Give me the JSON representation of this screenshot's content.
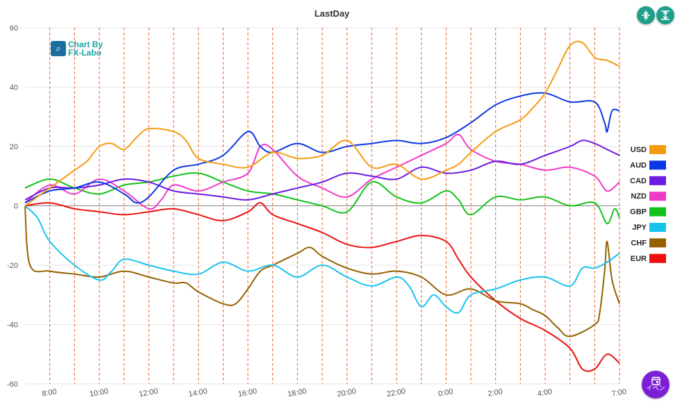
{
  "header": {
    "title": "LastDay"
  },
  "buttons": {
    "collapse_icon": "compress-vertical-icon",
    "expand_icon": "expand-vertical-icon",
    "event_label": "イベン",
    "event_icon": "calendar-icon"
  },
  "logo": {
    "line1": "Chart By",
    "line2": "FX-Labo",
    "icon": "magnifier-chart-icon"
  },
  "chart_data": {
    "type": "line",
    "title": "LastDay",
    "ylim": [
      -60,
      60
    ],
    "yticks": [
      60,
      40,
      20,
      0,
      -20,
      -40,
      -60
    ],
    "x_range_hours": [
      7.0,
      31.0
    ],
    "xticks": [
      "8:00",
      "10:00",
      "12:00",
      "14:00",
      "16:00",
      "18:00",
      "20:00",
      "22:00",
      "0:00",
      "2:00",
      "4:00",
      "7:00"
    ],
    "legend_position": "right",
    "grid": "horizontal",
    "zero_line": true,
    "session_markers": "vertical dashed lines every hour (orange-red)",
    "series": [
      {
        "name": "USD",
        "color": "#f59b10",
        "points": [
          [
            7,
            0
          ],
          [
            8,
            6
          ],
          [
            9,
            12
          ],
          [
            9.5,
            15
          ],
          [
            10,
            20
          ],
          [
            10.5,
            21
          ],
          [
            11,
            19
          ],
          [
            11.5,
            23
          ],
          [
            12,
            26
          ],
          [
            13,
            25
          ],
          [
            13.5,
            22
          ],
          [
            14,
            16
          ],
          [
            15,
            14
          ],
          [
            16,
            13
          ],
          [
            17,
            18
          ],
          [
            18,
            16
          ],
          [
            19,
            17
          ],
          [
            20,
            22
          ],
          [
            21,
            13
          ],
          [
            22,
            14
          ],
          [
            23,
            9
          ],
          [
            24,
            12
          ],
          [
            24.5,
            14
          ],
          [
            25,
            18
          ],
          [
            26,
            25
          ],
          [
            27,
            29
          ],
          [
            27.5,
            33
          ],
          [
            28,
            38
          ],
          [
            28.5,
            46
          ],
          [
            29,
            54
          ],
          [
            29.5,
            55
          ],
          [
            30,
            50
          ],
          [
            30.5,
            49
          ],
          [
            31,
            47
          ]
        ]
      },
      {
        "name": "AUD",
        "color": "#0a37e6",
        "points": [
          [
            7,
            1
          ],
          [
            8,
            5
          ],
          [
            9,
            6
          ],
          [
            10,
            8
          ],
          [
            11,
            4
          ],
          [
            11.5,
            1
          ],
          [
            12,
            3
          ],
          [
            13,
            12
          ],
          [
            14,
            14
          ],
          [
            15,
            17
          ],
          [
            16,
            25
          ],
          [
            16.5,
            20
          ],
          [
            17,
            18
          ],
          [
            18,
            21
          ],
          [
            19,
            18
          ],
          [
            20,
            20
          ],
          [
            21,
            21
          ],
          [
            22,
            22
          ],
          [
            23,
            21
          ],
          [
            24,
            23
          ],
          [
            25,
            28
          ],
          [
            26,
            34
          ],
          [
            27,
            37
          ],
          [
            28,
            38
          ],
          [
            29,
            35
          ],
          [
            30,
            35
          ],
          [
            30.4,
            28
          ],
          [
            30.5,
            25
          ],
          [
            30.7,
            32
          ],
          [
            31,
            32
          ]
        ]
      },
      {
        "name": "CAD",
        "color": "#6a1ce3",
        "points": [
          [
            7,
            2
          ],
          [
            8,
            6
          ],
          [
            9,
            6
          ],
          [
            10,
            7
          ],
          [
            11,
            9
          ],
          [
            12,
            8
          ],
          [
            13,
            5
          ],
          [
            14,
            4
          ],
          [
            15,
            3
          ],
          [
            16,
            2
          ],
          [
            17,
            4
          ],
          [
            18,
            6
          ],
          [
            19,
            8
          ],
          [
            20,
            11
          ],
          [
            21,
            10
          ],
          [
            22,
            9
          ],
          [
            23,
            13
          ],
          [
            24,
            11
          ],
          [
            25,
            12
          ],
          [
            26,
            15
          ],
          [
            27,
            14
          ],
          [
            28,
            17
          ],
          [
            29,
            20
          ],
          [
            29.5,
            22
          ],
          [
            30,
            21
          ],
          [
            30.5,
            19
          ],
          [
            31,
            17
          ]
        ]
      },
      {
        "name": "NZD",
        "color": "#ef3ac8",
        "points": [
          [
            7,
            1
          ],
          [
            8,
            7
          ],
          [
            9,
            4
          ],
          [
            10,
            9
          ],
          [
            11,
            5
          ],
          [
            12,
            -1
          ],
          [
            12.5,
            2
          ],
          [
            13,
            7
          ],
          [
            14,
            5
          ],
          [
            15,
            8
          ],
          [
            16,
            11
          ],
          [
            16.5,
            20
          ],
          [
            17,
            19
          ],
          [
            18,
            10
          ],
          [
            19,
            6
          ],
          [
            20,
            3
          ],
          [
            21,
            9
          ],
          [
            22,
            13
          ],
          [
            23,
            17
          ],
          [
            24,
            21
          ],
          [
            24.5,
            24
          ],
          [
            25,
            19
          ],
          [
            26,
            15
          ],
          [
            27,
            14
          ],
          [
            28,
            12
          ],
          [
            29,
            13
          ],
          [
            30,
            10
          ],
          [
            30.5,
            5
          ],
          [
            31,
            8
          ]
        ]
      },
      {
        "name": "GBP",
        "color": "#12c21a",
        "points": [
          [
            7,
            6
          ],
          [
            8,
            9
          ],
          [
            9,
            6
          ],
          [
            10,
            4
          ],
          [
            11,
            7
          ],
          [
            12,
            8
          ],
          [
            13,
            10
          ],
          [
            14,
            11
          ],
          [
            15,
            8
          ],
          [
            16,
            5
          ],
          [
            17,
            4
          ],
          [
            18,
            2
          ],
          [
            19,
            0
          ],
          [
            20,
            -2
          ],
          [
            21,
            8
          ],
          [
            22,
            3
          ],
          [
            23,
            1
          ],
          [
            24,
            5
          ],
          [
            24.5,
            2
          ],
          [
            25,
            -3
          ],
          [
            26,
            3
          ],
          [
            27,
            2
          ],
          [
            28,
            3
          ],
          [
            29,
            0
          ],
          [
            30,
            1
          ],
          [
            30.5,
            -6
          ],
          [
            30.8,
            -1
          ],
          [
            31,
            -4
          ]
        ]
      },
      {
        "name": "JPY",
        "color": "#17c4ee",
        "points": [
          [
            7,
            0
          ],
          [
            7.5,
            -4
          ],
          [
            8,
            -12
          ],
          [
            9,
            -20
          ],
          [
            10,
            -25
          ],
          [
            10.5,
            -22
          ],
          [
            11,
            -18
          ],
          [
            12,
            -20
          ],
          [
            13,
            -22
          ],
          [
            14,
            -23
          ],
          [
            15,
            -19
          ],
          [
            16,
            -22
          ],
          [
            17,
            -20
          ],
          [
            18,
            -24
          ],
          [
            19,
            -20
          ],
          [
            20,
            -24
          ],
          [
            21,
            -27
          ],
          [
            22,
            -24
          ],
          [
            22.5,
            -27
          ],
          [
            23,
            -34
          ],
          [
            23.5,
            -30
          ],
          [
            24,
            -34
          ],
          [
            24.5,
            -36
          ],
          [
            25,
            -30
          ],
          [
            26,
            -28
          ],
          [
            27,
            -25
          ],
          [
            28,
            -24
          ],
          [
            29,
            -27
          ],
          [
            29.5,
            -21
          ],
          [
            30,
            -21
          ],
          [
            30.5,
            -19
          ],
          [
            31,
            -16
          ]
        ]
      },
      {
        "name": "CHF",
        "color": "#946000",
        "points": [
          [
            7,
            0
          ],
          [
            7.2,
            -20
          ],
          [
            8,
            -22
          ],
          [
            9,
            -23
          ],
          [
            10,
            -24
          ],
          [
            11,
            -22
          ],
          [
            12,
            -24
          ],
          [
            13,
            -26
          ],
          [
            13.5,
            -26
          ],
          [
            14,
            -29
          ],
          [
            15,
            -33
          ],
          [
            15.5,
            -33
          ],
          [
            16,
            -28
          ],
          [
            16.5,
            -22
          ],
          [
            17,
            -20
          ],
          [
            18,
            -16
          ],
          [
            18.5,
            -14
          ],
          [
            19,
            -17
          ],
          [
            20,
            -21
          ],
          [
            21,
            -23
          ],
          [
            22,
            -22
          ],
          [
            23,
            -24
          ],
          [
            24,
            -30
          ],
          [
            25,
            -28
          ],
          [
            26,
            -32
          ],
          [
            27,
            -33
          ],
          [
            27.5,
            -35
          ],
          [
            28,
            -37
          ],
          [
            28.5,
            -41
          ],
          [
            29,
            -44
          ],
          [
            30,
            -40
          ],
          [
            30.2,
            -36
          ],
          [
            30.4,
            -22
          ],
          [
            30.5,
            -12
          ],
          [
            30.7,
            -25
          ],
          [
            31,
            -33
          ]
        ]
      },
      {
        "name": "EUR",
        "color": "#ec1010",
        "points": [
          [
            7,
            0
          ],
          [
            8,
            1
          ],
          [
            9,
            -1
          ],
          [
            10,
            -2
          ],
          [
            11,
            -3
          ],
          [
            12,
            -2
          ],
          [
            13,
            -1
          ],
          [
            14,
            -3
          ],
          [
            15,
            -5
          ],
          [
            16,
            -2
          ],
          [
            16.5,
            1
          ],
          [
            17,
            -3
          ],
          [
            18,
            -6
          ],
          [
            19,
            -9
          ],
          [
            20,
            -13
          ],
          [
            21,
            -14
          ],
          [
            22,
            -12
          ],
          [
            23,
            -10
          ],
          [
            24,
            -12
          ],
          [
            24.5,
            -18
          ],
          [
            25,
            -24
          ],
          [
            26,
            -32
          ],
          [
            27,
            -38
          ],
          [
            28,
            -42
          ],
          [
            29,
            -48
          ],
          [
            29.5,
            -55
          ],
          [
            30,
            -55
          ],
          [
            30.5,
            -50
          ],
          [
            31,
            -53
          ]
        ]
      }
    ]
  }
}
